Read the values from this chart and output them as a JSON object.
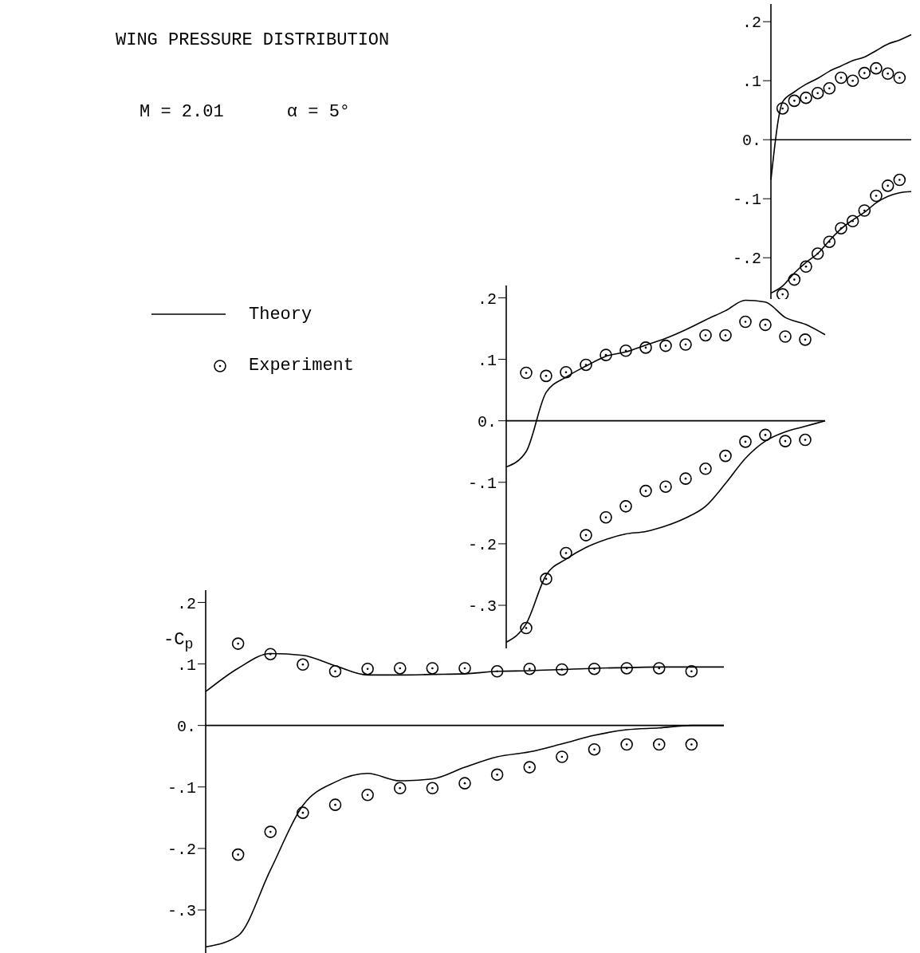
{
  "chart_data": [
    {
      "type": "line",
      "categories": [
        null,
        null,
        null,
        null,
        null,
        null,
        null,
        null,
        null,
        null,
        null,
        null,
        null
      ],
      "ylim": [
        -0.27,
        0.23
      ],
      "yticks": [
        {
          "value": 0.2,
          "label": ".2"
        },
        {
          "value": 0.1,
          "label": ".1"
        },
        {
          "value": 0,
          "label": "0."
        },
        {
          "value": -0.1,
          "label": "-.1"
        },
        {
          "value": -0.2,
          "label": "-.2"
        }
      ],
      "tick_labels": "y",
      "ref_lines": [
        {
          "axis": "y",
          "value": 0
        }
      ],
      "series": [
        {
          "marker": "none",
          "color": "#000000",
          "values": [
            -0.068,
            0.064,
            0.081,
            0.094,
            0.104,
            0.116,
            0.125,
            0.134,
            0.14,
            0.151,
            0.162,
            0.169,
            0.178
          ]
        },
        {
          "marker": "none",
          "color": "#000000",
          "values": [
            -0.26,
            -0.248,
            -0.226,
            -0.208,
            -0.193,
            -0.171,
            -0.151,
            -0.136,
            -0.123,
            -0.107,
            -0.096,
            -0.09,
            -0.088
          ]
        },
        {
          "type": "scatter",
          "marker": "circle",
          "color": "#000000",
          "values": [
            null,
            0.053,
            0.066,
            0.071,
            0.079,
            0.087,
            0.105,
            0.1,
            0.113,
            0.121,
            0.112,
            0.105,
            null
          ]
        },
        {
          "type": "scatter",
          "marker": "circle",
          "color": "#000000",
          "values": [
            null,
            -0.262,
            -0.237,
            -0.215,
            -0.193,
            -0.173,
            -0.15,
            -0.138,
            -0.12,
            -0.095,
            -0.078,
            -0.068,
            null
          ]
        }
      ]
    },
    {
      "type": "line",
      "title": "WING PRESSURE DISTRIBUTION",
      "annotations": [
        "M = 2.01      α = 5°"
      ],
      "legend": "left",
      "categories": [
        null,
        null,
        null,
        null,
        null,
        null,
        null,
        null,
        null,
        null,
        null,
        null,
        null,
        null,
        null,
        null,
        null
      ],
      "ylim": [
        -0.37,
        0.22
      ],
      "yticks": [
        {
          "value": 0.2,
          "label": ".2"
        },
        {
          "value": 0.1,
          "label": ".1"
        },
        {
          "value": 0,
          "label": "0."
        },
        {
          "value": -0.1,
          "label": "-.1"
        },
        {
          "value": -0.2,
          "label": "-.2"
        },
        {
          "value": -0.3,
          "label": "-.3"
        }
      ],
      "tick_labels": "y",
      "ref_lines": [
        {
          "axis": "y",
          "value": 0
        }
      ],
      "series": [
        {
          "name": "Theory",
          "marker": "none",
          "color": "#000000",
          "values": [
            -0.075,
            -0.05,
            0.046,
            0.071,
            0.089,
            0.105,
            0.112,
            0.123,
            0.134,
            0.148,
            0.164,
            0.179,
            0.196,
            0.193,
            0.168,
            0.157,
            0.14
          ]
        },
        {
          "marker": "none",
          "color": "#000000",
          "values": [
            -0.36,
            -0.33,
            -0.251,
            -0.225,
            -0.206,
            -0.193,
            -0.184,
            -0.18,
            -0.171,
            -0.158,
            -0.139,
            -0.102,
            -0.061,
            -0.033,
            -0.018,
            -0.009,
            0
          ]
        },
        {
          "name": "Experiment",
          "type": "scatter",
          "marker": "circle",
          "color": "#000000",
          "values": [
            null,
            0.078,
            0.073,
            0.079,
            0.091,
            0.107,
            0.114,
            0.119,
            0.122,
            0.124,
            0.139,
            0.139,
            0.161,
            0.156,
            0.137,
            0.132,
            null
          ]
        },
        {
          "type": "scatter",
          "marker": "circle",
          "color": "#000000",
          "values": [
            null,
            -0.337,
            -0.257,
            -0.215,
            -0.186,
            -0.157,
            -0.139,
            -0.114,
            -0.107,
            -0.094,
            -0.078,
            -0.057,
            -0.034,
            -0.023,
            -0.033,
            -0.031,
            null
          ]
        }
      ]
    },
    {
      "type": "line",
      "ylabel": "-C$_{p}$",
      "categories": [
        null,
        null,
        null,
        null,
        null,
        null,
        null,
        null,
        null,
        null,
        null,
        null,
        null,
        null,
        null,
        null,
        null
      ],
      "ylim": [
        -0.37,
        0.22
      ],
      "yticks": [
        {
          "value": 0.2,
          "label": ".2"
        },
        {
          "value": 0.1,
          "label": ".1"
        },
        {
          "value": 0,
          "label": "0."
        },
        {
          "value": -0.1,
          "label": "-.1"
        },
        {
          "value": -0.2,
          "label": "-.2"
        },
        {
          "value": -0.3,
          "label": "-.3"
        }
      ],
      "tick_labels": "y",
      "ref_lines": [
        {
          "axis": "y",
          "value": 0
        }
      ],
      "series": [
        {
          "marker": "none",
          "color": "#000000",
          "values": [
            0.055,
            0.093,
            0.117,
            0.114,
            0.097,
            0.082,
            0.082,
            0.083,
            0.084,
            0.088,
            0.089,
            0.091,
            0.093,
            0.094,
            0.095,
            0.095,
            0.095
          ]
        },
        {
          "marker": "none",
          "color": "#000000",
          "values": [
            -0.36,
            -0.342,
            -0.235,
            -0.13,
            -0.092,
            -0.078,
            -0.09,
            -0.087,
            -0.068,
            -0.051,
            -0.043,
            -0.03,
            -0.016,
            -0.007,
            -0.004,
            0,
            0
          ]
        },
        {
          "type": "scatter",
          "marker": "circle",
          "color": "#000000",
          "values": [
            null,
            0.133,
            0.116,
            0.099,
            0.088,
            0.092,
            0.093,
            0.093,
            0.093,
            0.088,
            0.092,
            0.091,
            0.092,
            0.093,
            0.093,
            0.088,
            null
          ]
        },
        {
          "type": "scatter",
          "marker": "circle",
          "color": "#000000",
          "values": [
            null,
            -0.21,
            -0.173,
            -0.142,
            -0.129,
            -0.113,
            -0.102,
            -0.102,
            -0.094,
            -0.08,
            -0.068,
            -0.051,
            -0.039,
            -0.031,
            -0.031,
            -0.031,
            null
          ]
        }
      ]
    }
  ]
}
